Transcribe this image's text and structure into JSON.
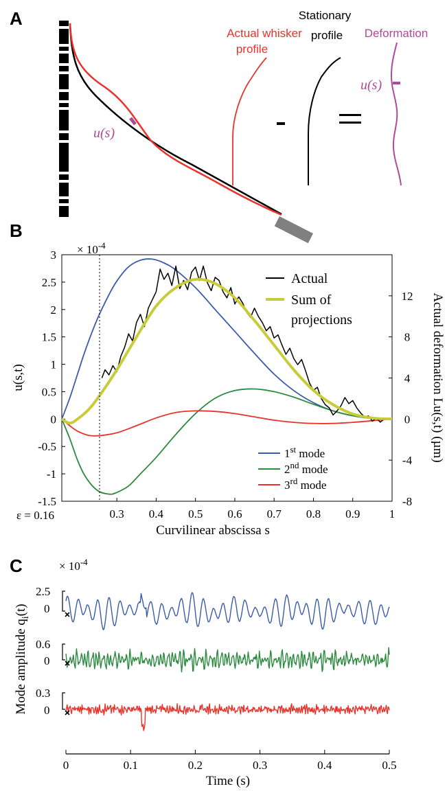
{
  "panelA": {
    "letter": "A",
    "labels": {
      "actual_line1": "Actual whisker",
      "actual_line2": "profile",
      "stationary_line1": "Stationary",
      "stationary_line2": "profile",
      "deformation": "Deformation",
      "u_s": "u(s)",
      "u_s_right": "u(s)"
    },
    "colors": {
      "actual": "#e8332a",
      "stationary": "#000000",
      "deformation": "#b0489c"
    }
  },
  "panelB": {
    "letter": "B",
    "exponent_label": "× 10",
    "exponent_power": "-4",
    "ylabel_left": "u(s,t)",
    "ylabel_right": "Actual deformation Lu(s,t) (µm)",
    "xlabel": "Curvilinear abscissa s",
    "epsilon_label": "ε = 0.16",
    "legend_top": [
      "Actual",
      "Sum of",
      "projections"
    ],
    "legend_modes": [
      {
        "base": "1",
        "sup": "st",
        "rest": " mode"
      },
      {
        "base": "2",
        "sup": "nd",
        "rest": " mode"
      },
      {
        "base": "3",
        "sup": "rd",
        "rest": " mode"
      }
    ]
  },
  "panelC": {
    "letter": "C",
    "exponent_label": "× 10",
    "exponent_power": "-4",
    "ylabel": "Mode amplitude q",
    "ylabel_sub": "i",
    "ylabel_end": "(t)",
    "xlabel": "Time (s)",
    "scale_labels": [
      {
        "top": "2.5",
        "zero": "0"
      },
      {
        "top": "0.6",
        "zero": "0"
      },
      {
        "top": "0.3",
        "zero": "0"
      }
    ]
  },
  "chart_data": [
    {
      "type": "line",
      "panel": "B",
      "xlim": [
        0.16,
        1
      ],
      "ylim_left": [
        -1.5,
        3
      ],
      "ylim_right": [
        -8,
        16
      ],
      "x_ticks": [
        "0.3",
        "0.4",
        "0.5",
        "0.6",
        "0.7",
        "0.8",
        "0.9",
        "1"
      ],
      "y_ticks_left": [
        "3",
        "2.5",
        "2",
        "1.5",
        "1",
        "0.5",
        "0",
        "-0.5",
        "-1",
        "-1.5"
      ],
      "y_ticks_right": [
        "12",
        "8",
        "4",
        "0",
        "-4",
        "-8"
      ],
      "epsilon_x": 0.256,
      "series": [
        {
          "name": "1st mode",
          "color": "#3a5bab",
          "x": [
            0.16,
            0.18,
            0.2,
            0.22,
            0.25,
            0.28,
            0.3,
            0.33,
            0.36,
            0.39,
            0.42,
            0.45,
            0.5,
            0.55,
            0.6,
            0.65,
            0.7,
            0.75,
            0.8,
            0.85,
            0.9,
            0.95,
            1.0
          ],
          "y": [
            0,
            0.38,
            0.82,
            1.26,
            1.82,
            2.27,
            2.52,
            2.78,
            2.9,
            2.92,
            2.85,
            2.72,
            2.4,
            2.0,
            1.6,
            1.2,
            0.82,
            0.52,
            0.3,
            0.15,
            0.06,
            0.01,
            0
          ]
        },
        {
          "name": "2nd mode",
          "color": "#2a8a3e",
          "x": [
            0.16,
            0.18,
            0.2,
            0.22,
            0.25,
            0.28,
            0.3,
            0.33,
            0.36,
            0.4,
            0.45,
            0.5,
            0.55,
            0.6,
            0.65,
            0.7,
            0.75,
            0.8,
            0.85,
            0.9,
            0.95,
            1.0
          ],
          "y": [
            0,
            -0.35,
            -0.75,
            -1.05,
            -1.3,
            -1.37,
            -1.34,
            -1.22,
            -1.0,
            -0.7,
            -0.28,
            0.1,
            0.38,
            0.52,
            0.55,
            0.5,
            0.4,
            0.27,
            0.15,
            0.06,
            0.01,
            0
          ]
        },
        {
          "name": "3rd mode",
          "color": "#e8332a",
          "x": [
            0.16,
            0.18,
            0.2,
            0.23,
            0.26,
            0.3,
            0.35,
            0.4,
            0.45,
            0.5,
            0.55,
            0.6,
            0.65,
            0.7,
            0.75,
            0.8,
            0.85,
            0.9,
            0.95,
            1.0
          ],
          "y": [
            0,
            -0.12,
            -0.22,
            -0.3,
            -0.3,
            -0.25,
            -0.12,
            0.02,
            0.12,
            0.15,
            0.14,
            0.1,
            0.04,
            -0.02,
            -0.06,
            -0.08,
            -0.08,
            -0.06,
            -0.03,
            0
          ]
        },
        {
          "name": "Sum of projections",
          "color": "#c8cc3a",
          "axis": "right",
          "x": [
            0.16,
            0.18,
            0.2,
            0.23,
            0.26,
            0.3,
            0.35,
            0.4,
            0.45,
            0.5,
            0.55,
            0.6,
            0.65,
            0.7,
            0.75,
            0.8,
            0.85,
            0.9,
            0.95,
            1.0
          ],
          "y": [
            0,
            -0.4,
            0,
            1.0,
            2.5,
            4.8,
            8.0,
            11.0,
            12.8,
            13.6,
            13.2,
            11.8,
            9.6,
            7.2,
            4.8,
            2.8,
            1.4,
            0.5,
            0.1,
            0
          ]
        },
        {
          "name": "Actual",
          "color": "#000000",
          "axis": "right",
          "x": [
            0.262,
            0.27,
            0.28,
            0.29,
            0.3,
            0.31,
            0.32,
            0.33,
            0.34,
            0.35,
            0.36,
            0.37,
            0.38,
            0.39,
            0.4,
            0.41,
            0.42,
            0.43,
            0.44,
            0.45,
            0.46,
            0.47,
            0.48,
            0.49,
            0.5,
            0.51,
            0.52,
            0.53,
            0.54,
            0.55,
            0.56,
            0.57,
            0.58,
            0.59,
            0.6,
            0.61,
            0.62,
            0.63,
            0.64,
            0.65,
            0.66,
            0.67,
            0.68,
            0.69,
            0.7,
            0.71,
            0.72,
            0.73,
            0.74,
            0.75,
            0.76,
            0.77,
            0.78,
            0.79,
            0.8,
            0.81,
            0.82,
            0.83,
            0.84,
            0.85,
            0.86,
            0.87,
            0.88,
            0.89,
            0.9,
            0.91,
            0.92,
            0.93,
            0.94,
            0.95,
            0.96,
            0.97,
            0.98
          ],
          "y": [
            4.0,
            4.8,
            4.3,
            5.2,
            4.6,
            6.1,
            7.0,
            8.3,
            7.6,
            9.4,
            10.2,
            9.0,
            10.8,
            11.6,
            12.4,
            14.6,
            13.6,
            14.2,
            13.0,
            14.9,
            12.7,
            13.5,
            12.6,
            14.3,
            14.8,
            13.5,
            14.9,
            13.3,
            12.5,
            13.8,
            13.5,
            12.4,
            11.8,
            12.8,
            11.2,
            11.9,
            11.3,
            10.4,
            9.9,
            10.8,
            10.0,
            9.4,
            8.6,
            9.0,
            7.9,
            8.2,
            7.2,
            6.3,
            6.9,
            5.9,
            5.3,
            5.8,
            4.7,
            3.5,
            2.8,
            3.1,
            2.0,
            1.4,
            1.1,
            0.4,
            0.8,
            1.3,
            2.1,
            1.5,
            1.8,
            1.1,
            0.6,
            0.2,
            0.3,
            -0.2,
            0.1,
            -0.3,
            0.0
          ]
        }
      ]
    },
    {
      "type": "line",
      "panel": "C",
      "xlim": [
        0,
        0.5
      ],
      "x_ticks": [
        "0",
        "0.1",
        "0.2",
        "0.3",
        "0.4",
        "0.5"
      ],
      "series": [
        {
          "name": "1st mode amplitude",
          "color": "#3a5bab",
          "scale_top": 2.5,
          "amplitude": 2.5
        },
        {
          "name": "2nd mode amplitude",
          "color": "#2a8a3e",
          "scale_top": 0.6,
          "amplitude": 0.6
        },
        {
          "name": "3rd mode amplitude",
          "color": "#e8332a",
          "scale_top": 0.3,
          "amplitude": 0.3
        }
      ]
    }
  ]
}
